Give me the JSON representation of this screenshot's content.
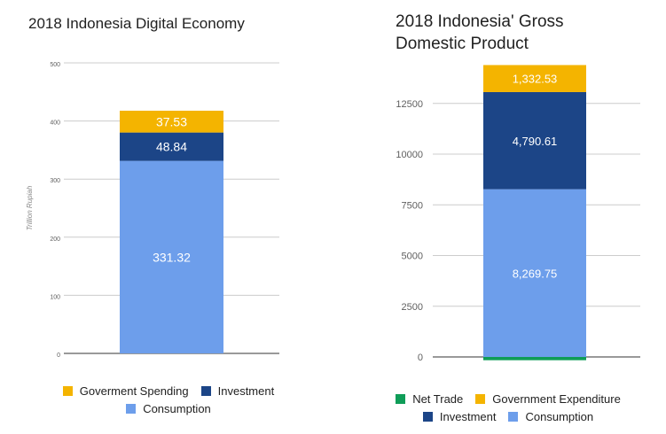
{
  "chart_data": [
    {
      "type": "bar",
      "stacked": true,
      "title": "2018 Indonesia Digital Economy",
      "ylabel": "Trillion Rupiah",
      "ylim": [
        0,
        500
      ],
      "yticks": [
        0,
        100,
        200,
        300,
        400,
        500
      ],
      "ytick_labels": [
        "0",
        "100",
        "200",
        "300",
        "400",
        "500"
      ],
      "grid": true,
      "legend_position": "bottom",
      "series": [
        {
          "name": "Consumption",
          "value": 331.32,
          "label": "331.32",
          "color": "#6d9eeb"
        },
        {
          "name": "Investment",
          "value": 48.84,
          "label": "48.84",
          "color": "#1c4587"
        },
        {
          "name": "Goverment Spending",
          "value": 37.53,
          "label": "37.53",
          "color": "#f4b400"
        }
      ],
      "legend_rows": [
        [
          "Goverment Spending",
          "Investment"
        ],
        [
          "Consumption"
        ]
      ]
    },
    {
      "type": "bar",
      "stacked": true,
      "title_lines": [
        "2018 Indonesia' Gross",
        "Domestic Product"
      ],
      "ylim": [
        0,
        14500
      ],
      "yticks": [
        0,
        2500,
        5000,
        7500,
        10000,
        12500
      ],
      "ytick_labels": [
        "0",
        "2500",
        "5000",
        "7500",
        "10000",
        "12500"
      ],
      "grid": true,
      "legend_position": "bottom",
      "series": [
        {
          "name": "Net Trade",
          "value": -161.77,
          "label": "-161.77",
          "color": "#0f9d58"
        },
        {
          "name": "Consumption",
          "value": 8269.75,
          "label": "8,269.75",
          "color": "#6d9eeb"
        },
        {
          "name": "Investment",
          "value": 4790.61,
          "label": "4,790.61",
          "color": "#1c4587"
        },
        {
          "name": "Government Expenditure",
          "value": 1332.53,
          "label": "1,332.53",
          "color": "#f4b400"
        }
      ],
      "legend_rows": [
        [
          "Net Trade",
          "Government Expenditure"
        ],
        [
          "Investment",
          "Consumption"
        ]
      ]
    }
  ]
}
